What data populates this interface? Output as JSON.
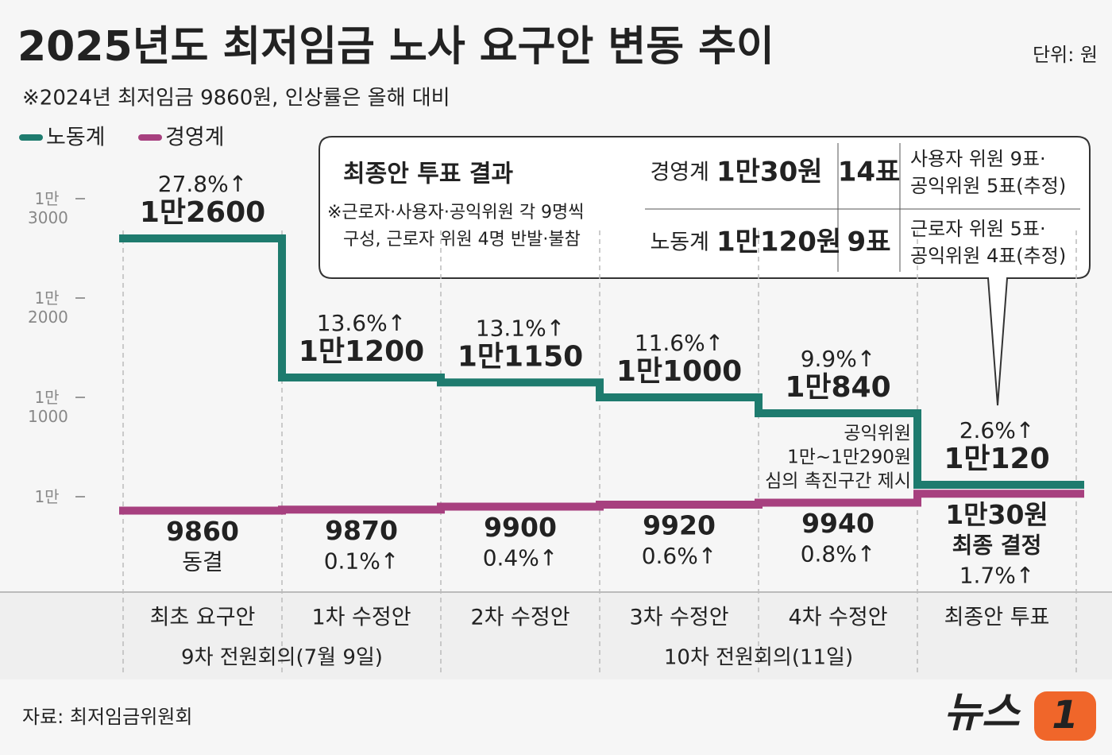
{
  "chart_data": {
    "type": "step",
    "title": "2025년도 최저임금 노사 요구안 변동 추이",
    "unit": "단위: 원",
    "subtitle": "※2024년 최저임금 9860원, 인상률은 올해 대비",
    "source": "자료: 최저임금위원회",
    "categories": [
      "최초 요구안",
      "1차 수정안",
      "2차 수정안",
      "3차 수정안",
      "4차 수정안",
      "최종안 투표"
    ],
    "groups": [
      "9차 전원회의(7월 9일)",
      "10차 전원회의(11일)"
    ],
    "series": [
      {
        "name": "노동계",
        "color": "#1e7b6e",
        "values": [
          12600,
          11200,
          11150,
          11000,
          10840,
          10120
        ],
        "value_labels": [
          "1만2600",
          "1만1200",
          "1만1150",
          "1만1000",
          "1만840",
          "1만120"
        ],
        "change_labels": [
          "27.8%↑",
          "13.6%↑",
          "13.1%↑",
          "11.6%↑",
          "9.9%↑",
          "2.6%↑"
        ]
      },
      {
        "name": "경영계",
        "color": "#a7407f",
        "values": [
          9860,
          9870,
          9900,
          9920,
          9940,
          10030
        ],
        "value_labels": [
          "9860",
          "9870",
          "9900",
          "9920",
          "9940",
          "1만30원"
        ],
        "change_labels": [
          "동결",
          "0.1%↑",
          "0.4%↑",
          "0.6%↑",
          "0.8%↑",
          "1.7%↑"
        ],
        "final_note": "최종 결정"
      }
    ],
    "ylim": [
      9100,
      13400
    ],
    "yticks": [
      {
        "value": 10000,
        "label": "1만"
      },
      {
        "value": 11000,
        "label": "1만 1000"
      },
      {
        "value": 12000,
        "label": "1만 2000"
      },
      {
        "value": 13000,
        "label": "1만 3000"
      }
    ],
    "annotation": [
      "공익위원",
      "1만~1만290원",
      "심의 촉진구간 제시"
    ]
  },
  "vote_box": {
    "title": "최종안 투표 결과",
    "note": [
      "※근로자·사용자·공익위원 각 9명씩",
      "구성, 근로자 위원 4명 반발·불참"
    ],
    "rows": [
      {
        "side": "경영계",
        "proposal": "1만30원",
        "votes": "14표",
        "detail": [
          "사용자 위원 9표·",
          "공익위원 5표(추정)"
        ]
      },
      {
        "side": "노동계",
        "proposal": "1만120원",
        "votes": "9표",
        "detail": [
          "근로자 위원 5표·",
          "공익위원 4표(추정)"
        ]
      }
    ]
  },
  "logo": {
    "text": "뉴스",
    "mark": "1"
  }
}
